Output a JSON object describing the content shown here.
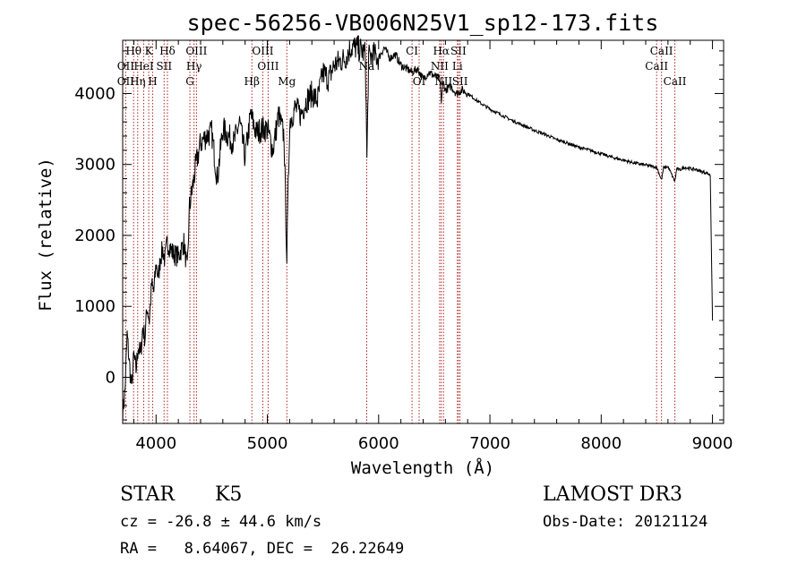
{
  "chart_data": {
    "type": "line",
    "title": "spec-56256-VB006N25V1_sp12-173.fits",
    "xlabel": "Wavelength (Å)",
    "ylabel": "Flux (relative)",
    "xlim": [
      3700,
      9100
    ],
    "ylim": [
      -650,
      4750
    ],
    "xticks": [
      4000,
      5000,
      6000,
      7000,
      8000,
      9000
    ],
    "yticks": [
      0,
      1000,
      2000,
      3000,
      4000
    ],
    "spectrum": {
      "name": "flux",
      "x": [
        3700,
        3720,
        3740,
        3760,
        3780,
        3800,
        3820,
        3840,
        3860,
        3880,
        3900,
        3920,
        3940,
        3960,
        3980,
        4000,
        4020,
        4040,
        4060,
        4080,
        4100,
        4120,
        4150,
        4200,
        4250,
        4280,
        4300,
        4330,
        4360,
        4400,
        4450,
        4500,
        4550,
        4600,
        4650,
        4700,
        4750,
        4800,
        4850,
        4900,
        4950,
        5000,
        5050,
        5100,
        5150,
        5175,
        5200,
        5250,
        5300,
        5350,
        5400,
        5450,
        5500,
        5550,
        5600,
        5650,
        5700,
        5750,
        5800,
        5850,
        5880,
        5895,
        5910,
        5950,
        6000,
        6050,
        6100,
        6150,
        6200,
        6250,
        6300,
        6350,
        6400,
        6450,
        6500,
        6550,
        6563,
        6580,
        6600,
        6650,
        6700,
        6750,
        6800,
        6900,
        7000,
        7100,
        7200,
        7300,
        7400,
        7500,
        7600,
        7700,
        7800,
        7900,
        8000,
        8100,
        8200,
        8300,
        8400,
        8500,
        8542,
        8560,
        8600,
        8662,
        8680,
        8700,
        8750,
        8800,
        8850,
        8900,
        8950,
        8980,
        9000
      ],
      "y": [
        -500,
        -200,
        600,
        200,
        -150,
        300,
        100,
        450,
        300,
        700,
        550,
        1000,
        800,
        1300,
        1200,
        1600,
        1400,
        1700,
        1800,
        1650,
        1900,
        1850,
        1750,
        1700,
        1900,
        1500,
        2400,
        2700,
        3000,
        3300,
        3400,
        3450,
        2800,
        3500,
        3400,
        3300,
        3600,
        3100,
        3700,
        3450,
        3500,
        3500,
        3200,
        3700,
        3400,
        1700,
        3600,
        3800,
        3700,
        3900,
        4000,
        3900,
        4300,
        4200,
        4400,
        4450,
        4500,
        4650,
        4650,
        4600,
        4550,
        3050,
        4500,
        4550,
        4500,
        4650,
        4500,
        4550,
        4400,
        4350,
        4300,
        4350,
        4200,
        4300,
        4250,
        4200,
        3900,
        4150,
        4050,
        4100,
        4000,
        4050,
        4000,
        3880,
        3780,
        3700,
        3620,
        3550,
        3480,
        3420,
        3350,
        3300,
        3240,
        3200,
        3150,
        3100,
        3060,
        3020,
        2990,
        2960,
        2780,
        2950,
        2970,
        2760,
        2950,
        2920,
        2960,
        2940,
        2930,
        2900,
        2880,
        2850,
        800
      ]
    },
    "annotations": [
      {
        "label": "Hθ",
        "x": 3798,
        "row": 1
      },
      {
        "label": "K",
        "x": 3934,
        "row": 1
      },
      {
        "label": "Hδ",
        "x": 4102,
        "row": 1
      },
      {
        "label": "OIII",
        "x": 4363,
        "row": 1
      },
      {
        "label": "OIII",
        "x": 4959,
        "row": 1
      },
      {
        "label": "CI",
        "x": 6300,
        "row": 1
      },
      {
        "label": "Hα",
        "x": 6563,
        "row": 1
      },
      {
        "label": "SII",
        "x": 6717,
        "row": 1
      },
      {
        "label": "CaII",
        "x": 8542,
        "row": 1
      },
      {
        "label": "OII",
        "x": 3727,
        "row": 2
      },
      {
        "label": "HeI",
        "x": 3889,
        "row": 2
      },
      {
        "label": "SII",
        "x": 4072,
        "row": 2
      },
      {
        "label": "Hγ",
        "x": 4341,
        "row": 2
      },
      {
        "label": "OIII",
        "x": 5007,
        "row": 2
      },
      {
        "label": "Na",
        "x": 5893,
        "row": 2
      },
      {
        "label": "NII",
        "x": 6548,
        "row": 2
      },
      {
        "label": "Li",
        "x": 6708,
        "row": 2
      },
      {
        "label": "CaII",
        "x": 8498,
        "row": 2
      },
      {
        "label": "OII",
        "x": 3727,
        "row": 3
      },
      {
        "label": "Hη",
        "x": 3835,
        "row": 3
      },
      {
        "label": "H",
        "x": 3969,
        "row": 3
      },
      {
        "label": "G",
        "x": 4304,
        "row": 3
      },
      {
        "label": "Hβ",
        "x": 4861,
        "row": 3
      },
      {
        "label": "Mg",
        "x": 5175,
        "row": 3
      },
      {
        "label": "OI",
        "x": 6364,
        "row": 3
      },
      {
        "label": "NII",
        "x": 6583,
        "row": 3
      },
      {
        "label": "SII",
        "x": 6731,
        "row": 3
      },
      {
        "label": "CaII",
        "x": 8662,
        "row": 3
      }
    ],
    "line_marks": [
      3727,
      3798,
      3835,
      3889,
      3934,
      3969,
      4072,
      4102,
      4304,
      4341,
      4363,
      4861,
      4959,
      5007,
      5175,
      5893,
      6300,
      6364,
      6548,
      6563,
      6583,
      6708,
      6717,
      6731,
      8498,
      8542,
      8662
    ],
    "colors": {
      "axis": "#000000",
      "series": "#000000",
      "marks": "#b22222"
    }
  },
  "info": {
    "class": "STAR",
    "subclass": "K5",
    "survey": "LAMOST DR3",
    "cz": "cz = -26.8 ± 44.6 km/s",
    "obsdate": "Obs-Date: 20121124",
    "radec": "RA =   8.64067, DEC =  26.22649"
  }
}
